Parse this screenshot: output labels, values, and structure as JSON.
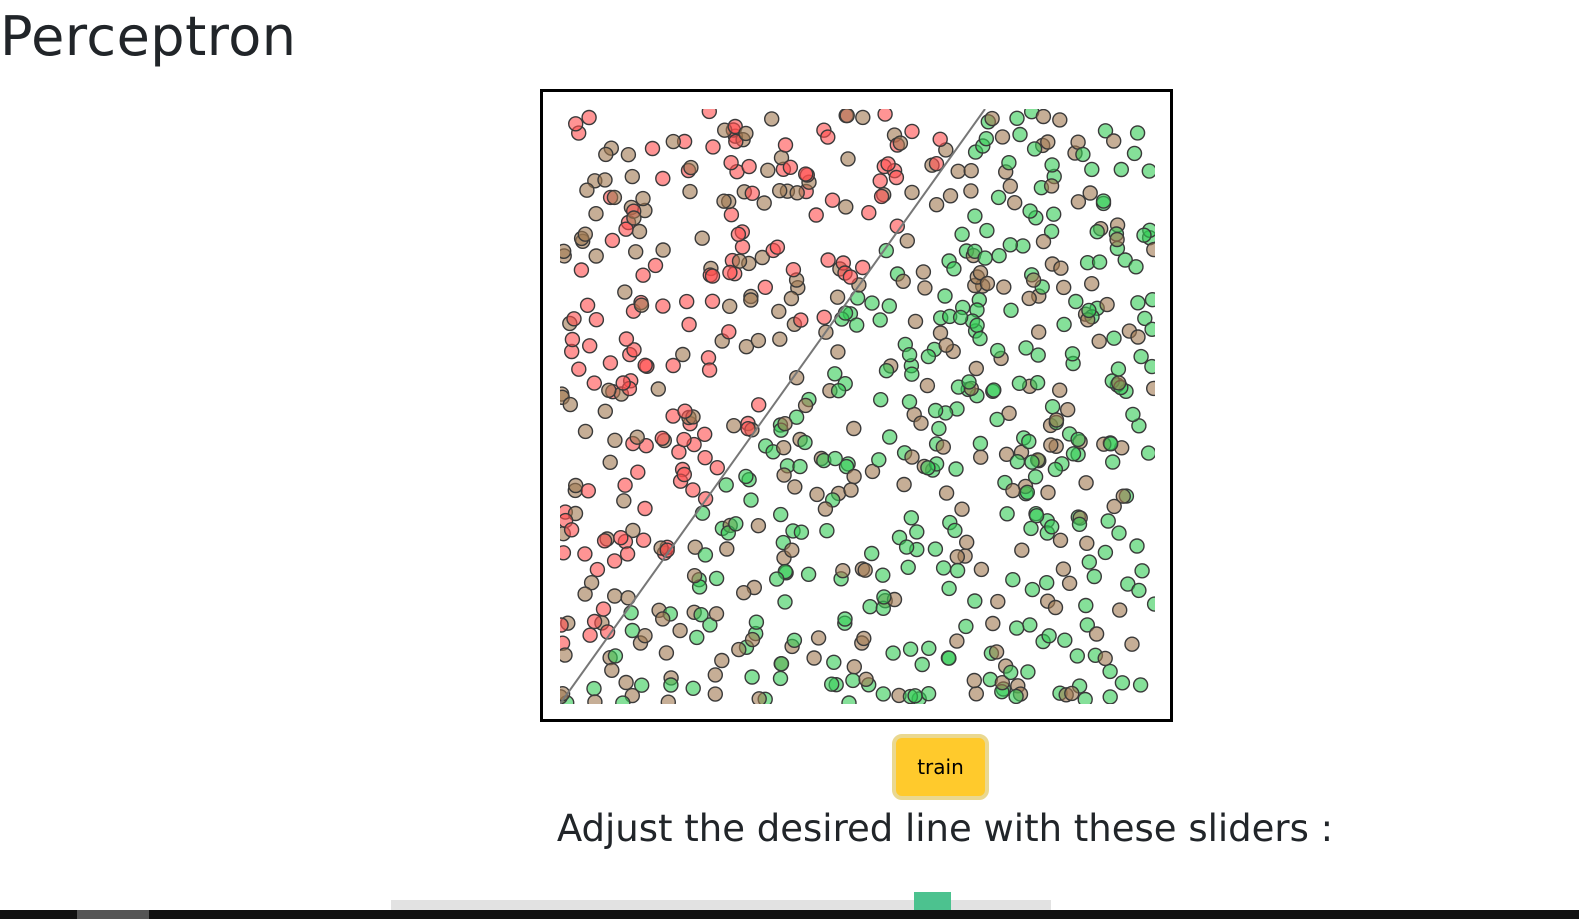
{
  "page": {
    "title": "Perceptron",
    "train_label": "train",
    "instructions": "Adjust the desired line with these sliders :"
  },
  "slider": {
    "value": 0.84
  },
  "plot": {
    "x_range": [
      0,
      1
    ],
    "y_range": [
      0,
      1
    ],
    "divider_line": {
      "slope": 1.4,
      "intercept": 0,
      "color": "#777777"
    },
    "point_count": 720,
    "colors": {
      "class_above": "#ff4d4d",
      "class_below": "#33cc55",
      "misclassified": "#a07850",
      "outline": "#3a3a3a"
    },
    "point_opacity": 0.6
  }
}
